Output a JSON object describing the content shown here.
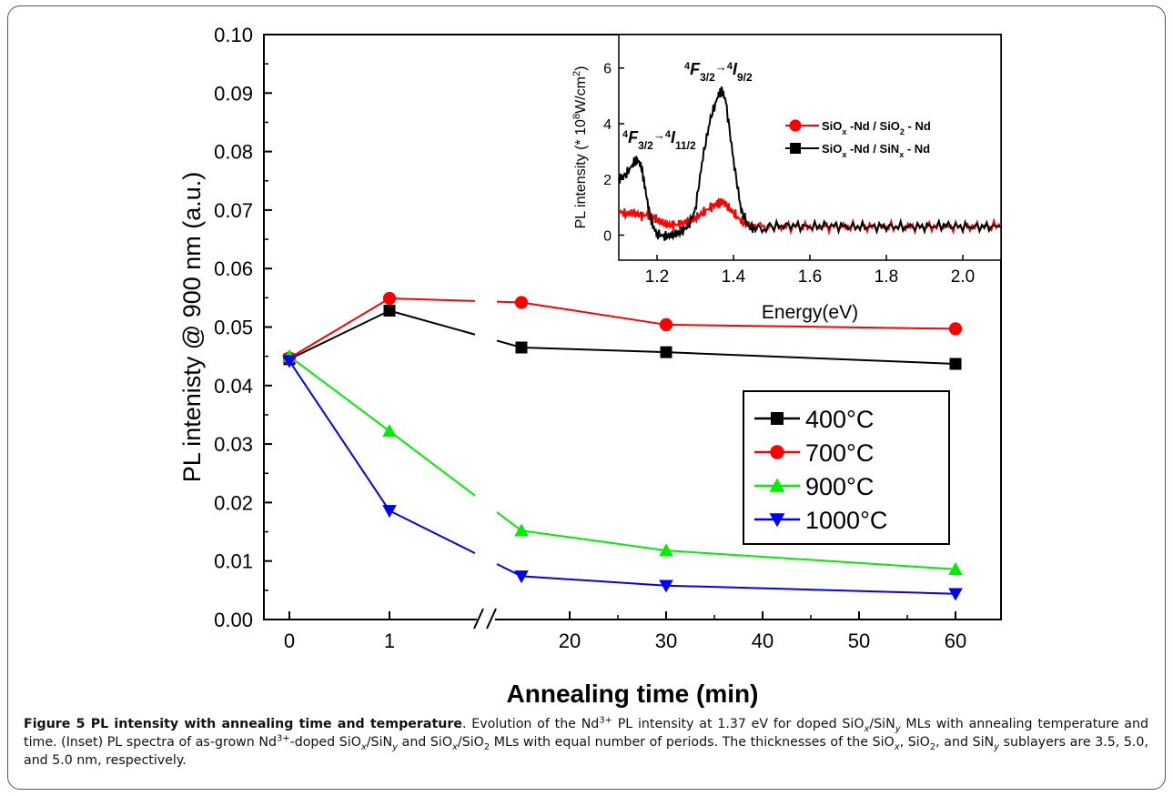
{
  "chart_data": [
    {
      "type": "line",
      "ylabel": "PL intenisty @ 900 nm (a.u.)",
      "xlabel": "Annealing time (min)",
      "ylim": [
        0,
        0.1
      ],
      "yticks": [
        "0.00",
        "0.01",
        "0.02",
        "0.03",
        "0.04",
        "0.05",
        "0.06",
        "0.07",
        "0.08",
        "0.09",
        "0.10"
      ],
      "xlim_segment1": [
        0,
        1
      ],
      "xlim_segment2": [
        15,
        60
      ],
      "xticks": [
        "0",
        "1",
        "20",
        "30",
        "40",
        "50",
        "60"
      ],
      "axis_break": "between 1 and 15 on x axis",
      "legend_position": "center-right",
      "series": [
        {
          "name": "400°C",
          "color": "#000000",
          "marker": "square",
          "x": [
            0,
            1,
            15,
            30,
            60
          ],
          "y": [
            0.0445,
            0.0528,
            0.0465,
            0.0457,
            0.0437
          ]
        },
        {
          "name": "700°C",
          "color": "#ff0000",
          "marker": "circle",
          "x": [
            0,
            1,
            15,
            30,
            60
          ],
          "y": [
            0.0447,
            0.0549,
            0.0542,
            0.0504,
            0.0497
          ]
        },
        {
          "name": "900°C",
          "color": "#00ee00",
          "marker": "triangle-up",
          "x": [
            0,
            1,
            15,
            30,
            60
          ],
          "y": [
            0.045,
            0.0322,
            0.0152,
            0.0118,
            0.0086
          ]
        },
        {
          "name": "1000°C",
          "color": "#0000ff",
          "marker": "triangle-down",
          "x": [
            0,
            1,
            15,
            30,
            60
          ],
          "y": [
            0.0442,
            0.0186,
            0.0074,
            0.0058,
            0.0044
          ]
        }
      ]
    },
    {
      "type": "line",
      "inset": true,
      "xlabel": "Energy(eV)",
      "ylabel_prefix": "PL intensity (* 10",
      "ylabel_sup": "8",
      "ylabel_suffix": "W/cm",
      "ylabel_sup2": "2",
      "ylabel_end": ")",
      "xlim": [
        1.1,
        2.1
      ],
      "ylim": [
        -0.9,
        7.2
      ],
      "xticks": [
        "1.2",
        "1.4",
        "1.6",
        "1.8",
        "2.0"
      ],
      "yticks": [
        "0",
        "2",
        "4",
        "6"
      ],
      "legend_position": "right",
      "annotations": [
        {
          "upper": "4",
          "main": "F",
          "sub": "3/2",
          "arrow": "→",
          "upper2": "4",
          "main2": "I",
          "sub2": "9/2"
        },
        {
          "upper": "4",
          "main": "F",
          "sub": "3/2",
          "arrow": "→",
          "upper2": "4",
          "main2": "I",
          "sub2": "11/2"
        }
      ],
      "series": [
        {
          "name_a": "SiO",
          "name_sub_a": "x",
          "name_b": " -Nd / SiO",
          "name_sub_b": "2",
          "name_c": " - Nd",
          "color": "#ff0000",
          "marker": "circle",
          "x": [
            1.1,
            1.12,
            1.14,
            1.16,
            1.18,
            1.2,
            1.22,
            1.24,
            1.26,
            1.28,
            1.3,
            1.32,
            1.34,
            1.36,
            1.37,
            1.38,
            1.4,
            1.42,
            1.44,
            1.46,
            1.5,
            1.55,
            1.6,
            1.65,
            1.7,
            1.75,
            1.8,
            1.85,
            1.9,
            1.95,
            2.0,
            2.05,
            2.1
          ],
          "y": [
            0.85,
            0.75,
            0.8,
            0.7,
            0.75,
            0.55,
            0.4,
            0.35,
            0.4,
            0.5,
            0.6,
            0.8,
            1.0,
            1.15,
            1.2,
            1.1,
            0.8,
            0.5,
            0.35,
            0.3,
            0.3,
            0.3,
            0.3,
            0.3,
            0.3,
            0.3,
            0.3,
            0.3,
            0.3,
            0.3,
            0.3,
            0.3,
            0.35
          ]
        },
        {
          "name_a": "SiO",
          "name_sub_a": "x",
          "name_b": " -Nd / SiN",
          "name_sub_b": "x",
          "name_c": " - Nd",
          "color": "#000000",
          "marker": "square",
          "x": [
            1.1,
            1.12,
            1.14,
            1.15,
            1.16,
            1.17,
            1.18,
            1.19,
            1.2,
            1.22,
            1.24,
            1.26,
            1.28,
            1.3,
            1.32,
            1.34,
            1.36,
            1.37,
            1.38,
            1.4,
            1.42,
            1.44,
            1.46,
            1.5,
            1.55,
            1.6,
            1.65,
            1.7,
            1.75,
            1.8,
            1.85,
            1.9,
            1.95,
            2.0,
            2.05,
            2.1
          ],
          "y": [
            2.0,
            2.2,
            2.6,
            2.7,
            2.4,
            1.6,
            0.8,
            0.3,
            0.05,
            -0.05,
            0.0,
            0.1,
            0.3,
            0.9,
            2.8,
            4.2,
            5.0,
            5.2,
            4.8,
            2.7,
            0.9,
            0.3,
            0.2,
            0.3,
            0.35,
            0.3,
            0.35,
            0.3,
            0.3,
            0.3,
            0.3,
            0.3,
            0.35,
            0.3,
            0.3,
            0.3
          ]
        }
      ]
    }
  ],
  "caption": {
    "title": "Figure 5 PL intensity with annealing time and temperature",
    "t1": ". Evolution of the Nd",
    "s1": "3+",
    "t2": " PL intensity at 1.37 eV for doped SiO",
    "s2": "x",
    "t3": "/SiN",
    "s3": "y",
    "t4": " MLs with annealing temperature and time. (Inset) PL spectra of as-grown Nd",
    "s4": "3+",
    "t5": "-doped SiO",
    "s5": "x",
    "t6": "/SiN",
    "s6": "y",
    "t7": " and SiO",
    "s7": "x",
    "t8": "/SiO",
    "s8": "2",
    "t9": " MLs with equal number of periods. The thicknesses of the SiO",
    "s9": "x",
    "t10": ", SiO",
    "s10": "2",
    "t11": ", and SiN",
    "s11": "y",
    "t12": " sublayers are 3.5, 5.0, and 5.0 nm, respectively."
  }
}
